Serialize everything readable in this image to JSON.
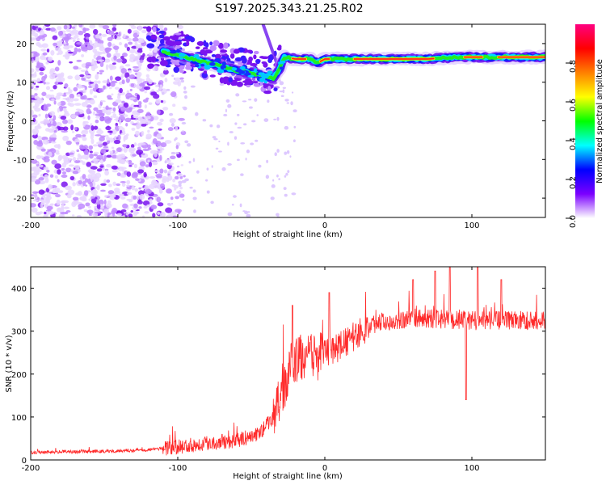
{
  "title": "S197.2025.343.21.25.R02",
  "chart_data": [
    {
      "type": "heatmap",
      "name": "spectrogram",
      "xlabel": "Height of straight line (km)",
      "ylabel": "Frequency (Hz)",
      "xlim": [
        -200,
        150
      ],
      "ylim": [
        -25,
        25
      ],
      "xticks": [
        -200,
        -100,
        0,
        100
      ],
      "yticks": [
        20,
        10,
        0,
        -10,
        -20
      ],
      "colorbar": {
        "label": "Normalized spectral amplitude",
        "range": [
          0,
          1
        ],
        "ticks": [
          0.0,
          0.2,
          0.4,
          0.6,
          0.8
        ],
        "tick_labels": [
          "0.0",
          "0.2",
          "0.4",
          "0.6",
          "0.8"
        ],
        "colors": [
          "#ffffff",
          "#7b00ff",
          "#0000ff",
          "#00ffff",
          "#00ff00",
          "#ffff00",
          "#ff8000",
          "#ff0000",
          "#ff0080"
        ]
      },
      "ridge": [
        {
          "x": -110,
          "y": 18
        },
        {
          "x": -100,
          "y": 17
        },
        {
          "x": -80,
          "y": 15
        },
        {
          "x": -60,
          "y": 13
        },
        {
          "x": -45,
          "y": 12
        },
        {
          "x": -35,
          "y": 11
        },
        {
          "x": -30,
          "y": 14
        },
        {
          "x": -28,
          "y": 16.5
        },
        {
          "x": -20,
          "y": 16
        },
        {
          "x": -10,
          "y": 16
        },
        {
          "x": -5,
          "y": 15
        },
        {
          "x": 0,
          "y": 16
        },
        {
          "x": 10,
          "y": 16
        },
        {
          "x": 30,
          "y": 16
        },
        {
          "x": 50,
          "y": 16
        },
        {
          "x": 70,
          "y": 16
        },
        {
          "x": 90,
          "y": 16.5
        },
        {
          "x": 110,
          "y": 16.5
        },
        {
          "x": 130,
          "y": 16.5
        },
        {
          "x": 150,
          "y": 16.5
        }
      ],
      "noise_region": {
        "x_from": -200,
        "x_to": -105,
        "y_from": -25,
        "y_to": 25
      }
    },
    {
      "type": "line",
      "name": "snr",
      "xlabel": "Height of straight line (km)",
      "ylabel": "SNR (10 * v/v)",
      "xlim": [
        -200,
        150
      ],
      "ylim": [
        0,
        450
      ],
      "xticks": [
        -200,
        -100,
        0,
        100
      ],
      "yticks": [
        0,
        100,
        200,
        300,
        400
      ],
      "color": "#ff2a2a",
      "trend": [
        {
          "x": -200,
          "y": 18
        },
        {
          "x": -150,
          "y": 20
        },
        {
          "x": -120,
          "y": 24
        },
        {
          "x": -100,
          "y": 30
        },
        {
          "x": -80,
          "y": 40
        },
        {
          "x": -60,
          "y": 45
        },
        {
          "x": -45,
          "y": 60
        },
        {
          "x": -35,
          "y": 100
        },
        {
          "x": -28,
          "y": 160
        },
        {
          "x": -22,
          "y": 230
        },
        {
          "x": -15,
          "y": 240
        },
        {
          "x": -5,
          "y": 240
        },
        {
          "x": 5,
          "y": 255
        },
        {
          "x": 15,
          "y": 275
        },
        {
          "x": 25,
          "y": 300
        },
        {
          "x": 35,
          "y": 320
        },
        {
          "x": 60,
          "y": 330
        },
        {
          "x": 100,
          "y": 325
        },
        {
          "x": 150,
          "y": 325
        }
      ],
      "spikes": [
        {
          "x": -22,
          "y": 360
        },
        {
          "x": 3,
          "y": 390
        },
        {
          "x": 60,
          "y": 420
        },
        {
          "x": 75,
          "y": 440
        },
        {
          "x": 85,
          "y": 450
        },
        {
          "x": 96,
          "y": 140
        },
        {
          "x": 104,
          "y": 450
        },
        {
          "x": 120,
          "y": 420
        }
      ]
    }
  ]
}
